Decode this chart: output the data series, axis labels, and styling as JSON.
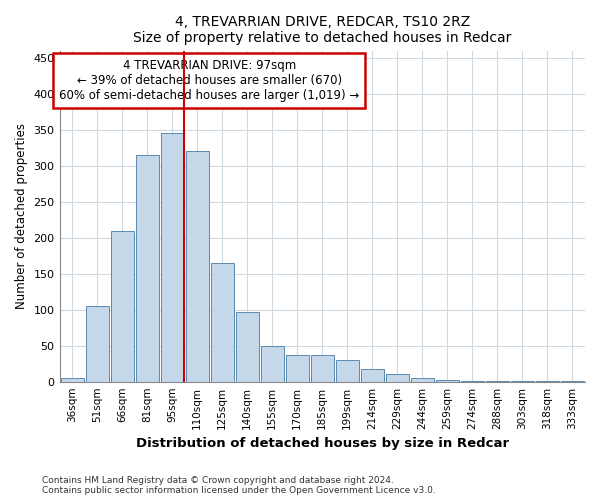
{
  "title1": "4, TREVARRIAN DRIVE, REDCAR, TS10 2RZ",
  "title2": "Size of property relative to detached houses in Redcar",
  "xlabel": "Distribution of detached houses by size in Redcar",
  "ylabel": "Number of detached properties",
  "categories": [
    "36sqm",
    "51sqm",
    "66sqm",
    "81sqm",
    "95sqm",
    "110sqm",
    "125sqm",
    "140sqm",
    "155sqm",
    "170sqm",
    "185sqm",
    "199sqm",
    "214sqm",
    "229sqm",
    "244sqm",
    "259sqm",
    "274sqm",
    "288sqm",
    "303sqm",
    "318sqm",
    "333sqm"
  ],
  "values": [
    5,
    105,
    210,
    315,
    345,
    320,
    165,
    97,
    50,
    37,
    37,
    30,
    18,
    10,
    5,
    2,
    1,
    1,
    1,
    1,
    1
  ],
  "bar_color": "#c5d8ea",
  "bar_edge_color": "#5a8ab0",
  "vline_index": 4,
  "vline_color": "#cc0000",
  "annotation_line1": "4 TREVARRIAN DRIVE: 97sqm",
  "annotation_line2": "← 39% of detached houses are smaller (670)",
  "annotation_line3": "60% of semi-detached houses are larger (1,019) →",
  "ann_box_fc": "#ffffff",
  "ann_box_ec": "#cc0000",
  "ylim": [
    0,
    460
  ],
  "yticks": [
    0,
    50,
    100,
    150,
    200,
    250,
    300,
    350,
    400,
    450
  ],
  "grid_color": "#d0d8e0",
  "bg_color": "#ffffff",
  "footer1": "Contains HM Land Registry data © Crown copyright and database right 2024.",
  "footer2": "Contains public sector information licensed under the Open Government Licence v3.0."
}
